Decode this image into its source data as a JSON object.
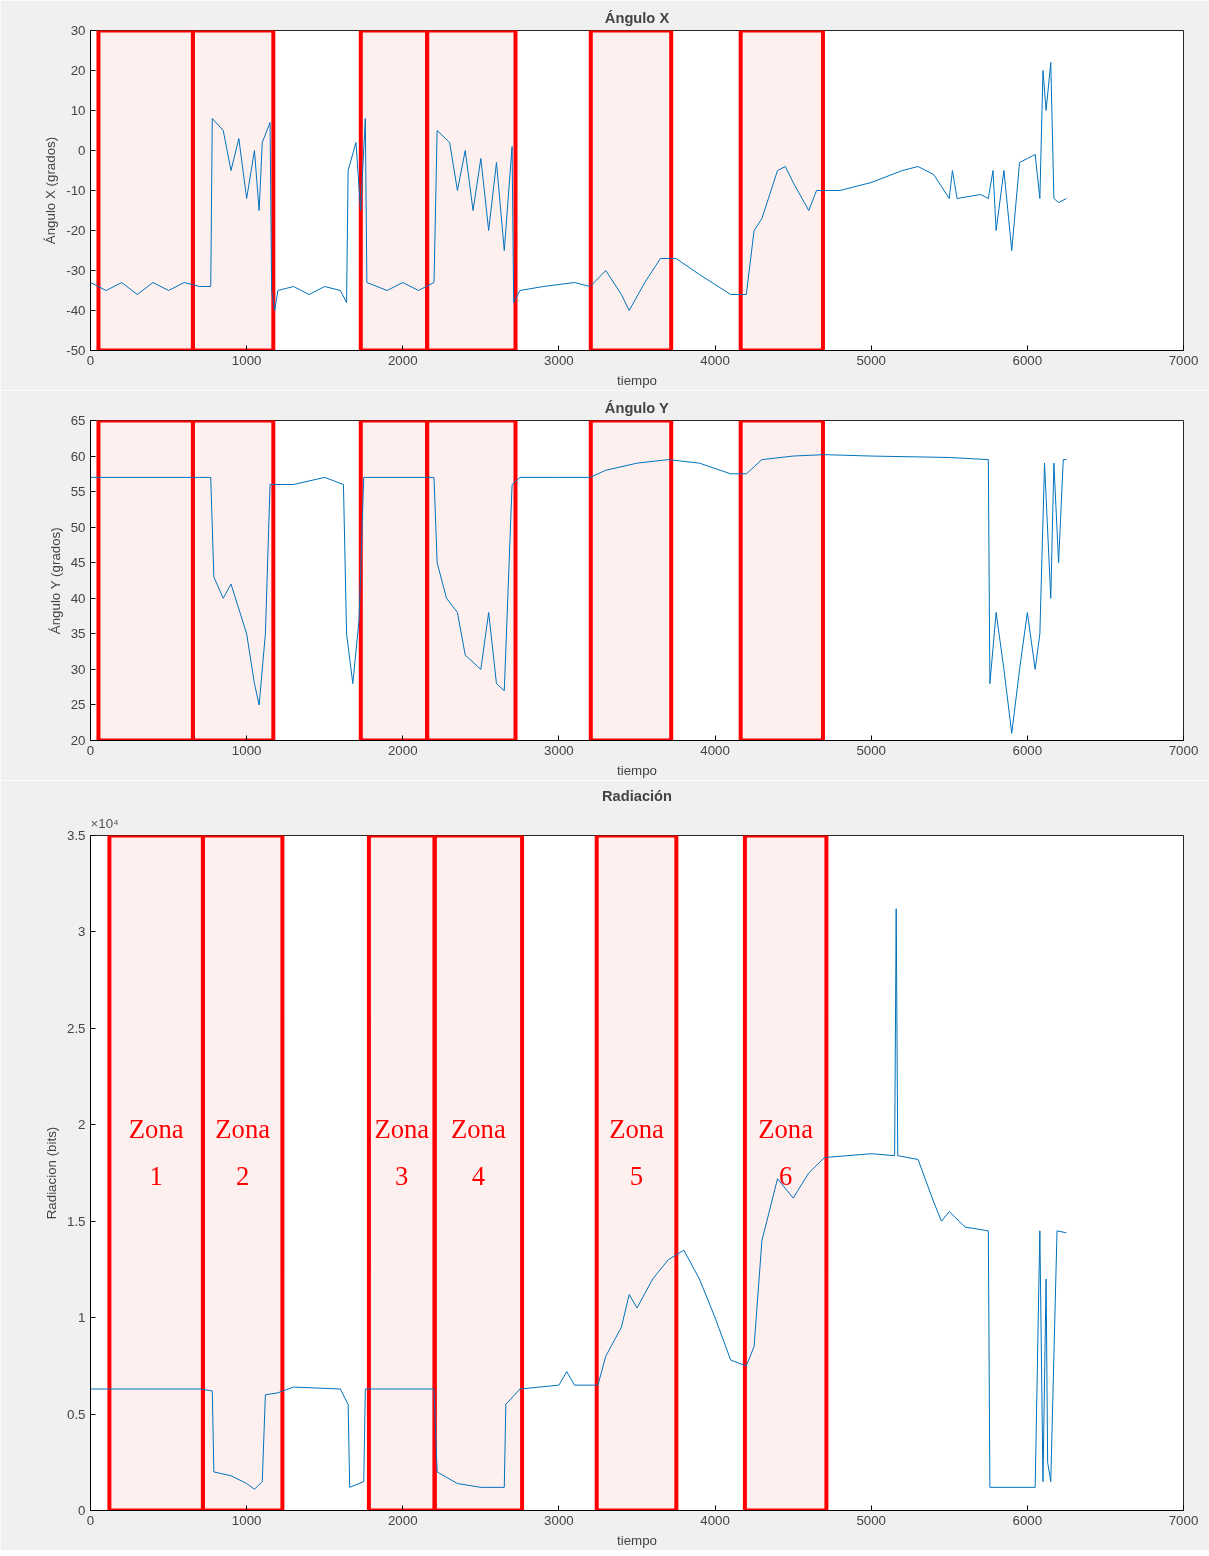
{
  "chart_data": [
    {
      "type": "line",
      "title": "Ángulo X",
      "xlabel": "tiempo",
      "ylabel": "Ángulo X (grados)",
      "xlim": [
        0,
        7000
      ],
      "xticks": [
        0,
        1000,
        2000,
        3000,
        4000,
        5000,
        6000,
        7000
      ],
      "ylim": [
        -50,
        30
      ],
      "yticks": [
        -50,
        -40,
        -30,
        -20,
        -10,
        0,
        10,
        20,
        30
      ],
      "grid": false,
      "x": [
        0,
        100,
        200,
        300,
        400,
        500,
        600,
        700,
        770,
        780,
        850,
        900,
        950,
        1000,
        1050,
        1080,
        1100,
        1150,
        1160,
        1180,
        1200,
        1300,
        1400,
        1500,
        1600,
        1640,
        1650,
        1700,
        1730,
        1760,
        1770,
        1900,
        2000,
        2100,
        2200,
        2220,
        2300,
        2350,
        2400,
        2450,
        2500,
        2550,
        2600,
        2650,
        2700,
        2710,
        2750,
        2900,
        3100,
        3200,
        3300,
        3400,
        3450,
        3550,
        3650,
        3750,
        3900,
        4100,
        4200,
        4250,
        4300,
        4400,
        4450,
        4500,
        4600,
        4650,
        4800,
        5000,
        5200,
        5300,
        5400,
        5450,
        5500,
        5520,
        5550,
        5700,
        5750,
        5780,
        5800,
        5850,
        5900,
        5950,
        6000,
        6050,
        6080,
        6100,
        6120,
        6150,
        6170,
        6200,
        6250
      ],
      "series": [
        {
          "color": "#0072bd",
          "values": [
            -33,
            -35,
            -33,
            -36,
            -33,
            -35,
            -33,
            -34,
            -34,
            8,
            5,
            -5,
            3,
            -12,
            0,
            -15,
            2,
            7,
            -35,
            -40,
            -35,
            -34,
            -36,
            -34,
            -35,
            -38,
            -5,
            2,
            -15,
            8,
            -33,
            -35,
            -33,
            -35,
            -33,
            5,
            2,
            -10,
            0,
            -15,
            -2,
            -20,
            -3,
            -25,
            1,
            -38,
            -35,
            -34,
            -33,
            -34,
            -30,
            -36,
            -40,
            -33,
            -27,
            -27,
            -31,
            -36,
            -36,
            -20,
            -17,
            -5,
            -4,
            -8,
            -15,
            -10,
            -10,
            -8,
            -5,
            -4,
            -6,
            -9,
            -12,
            -5,
            -12,
            -11,
            -12,
            -5,
            -20,
            -5,
            -25,
            -3,
            -2,
            -1,
            -12,
            20,
            10,
            22,
            -12,
            -13,
            -12
          ]
        }
      ],
      "bands": [
        {
          "axis": "x",
          "from": 51,
          "to": 656,
          "color": "#ff0000"
        },
        {
          "axis": "x",
          "from": 656,
          "to": 1171,
          "color": "#ff0000"
        },
        {
          "axis": "x",
          "from": 1731,
          "to": 2156,
          "color": "#ff0000"
        },
        {
          "axis": "x",
          "from": 2156,
          "to": 2722,
          "color": "#ff0000"
        },
        {
          "axis": "x",
          "from": 3204,
          "to": 3719,
          "color": "#ff0000"
        },
        {
          "axis": "x",
          "from": 4164,
          "to": 4691,
          "color": "#ff0000"
        }
      ]
    },
    {
      "type": "line",
      "title": "Ángulo Y",
      "xlabel": "tiempo",
      "ylabel": "Ángulo Y (grados)",
      "xlim": [
        0,
        7000
      ],
      "xticks": [
        0,
        1000,
        2000,
        3000,
        4000,
        5000,
        6000,
        7000
      ],
      "ylim": [
        20,
        65
      ],
      "yticks": [
        20,
        25,
        30,
        35,
        40,
        45,
        50,
        55,
        60,
        65
      ],
      "grid": false,
      "x": [
        0,
        700,
        770,
        790,
        850,
        900,
        1000,
        1050,
        1080,
        1120,
        1150,
        1300,
        1500,
        1620,
        1640,
        1680,
        1720,
        1750,
        2200,
        2220,
        2280,
        2350,
        2400,
        2500,
        2550,
        2600,
        2650,
        2700,
        2750,
        3000,
        3200,
        3300,
        3500,
        3700,
        3900,
        4100,
        4200,
        4300,
        4500,
        4700,
        5000,
        5500,
        5750,
        5760,
        5800,
        5850,
        5900,
        5950,
        6000,
        6050,
        6080,
        6110,
        6150,
        6170,
        6200,
        6230,
        6250
      ],
      "series": [
        {
          "color": "#0072bd",
          "values": [
            57,
            57,
            57,
            43,
            40,
            42,
            35,
            28,
            25,
            35,
            56,
            56,
            57,
            56,
            35,
            28,
            37,
            57,
            57,
            45,
            40,
            38,
            32,
            30,
            38,
            28,
            27,
            56,
            57,
            57,
            57,
            58,
            59,
            59.5,
            59,
            57.5,
            57.5,
            59.5,
            60,
            60.2,
            60,
            59.8,
            59.5,
            28,
            38,
            30,
            21,
            30,
            38,
            30,
            35,
            59,
            40,
            59,
            45,
            59.5,
            59.5
          ]
        }
      ],
      "bands": [
        {
          "axis": "x",
          "from": 51,
          "to": 656,
          "color": "#ff0000"
        },
        {
          "axis": "x",
          "from": 656,
          "to": 1171,
          "color": "#ff0000"
        },
        {
          "axis": "x",
          "from": 1731,
          "to": 2156,
          "color": "#ff0000"
        },
        {
          "axis": "x",
          "from": 2156,
          "to": 2722,
          "color": "#ff0000"
        },
        {
          "axis": "x",
          "from": 3204,
          "to": 3719,
          "color": "#ff0000"
        },
        {
          "axis": "x",
          "from": 4164,
          "to": 4691,
          "color": "#ff0000"
        }
      ]
    },
    {
      "type": "line",
      "title": "Radiación",
      "xlabel": "tiempo",
      "ylabel": "Radiacion (bits)",
      "annotations": [
        "×10⁴"
      ],
      "xlim": [
        0,
        7000
      ],
      "xticks": [
        0,
        1000,
        2000,
        3000,
        4000,
        5000,
        6000,
        7000
      ],
      "ylim": [
        0,
        3.5
      ],
      "yticks": [
        0,
        0.5,
        1,
        1.5,
        2,
        2.5,
        3,
        3.5
      ],
      "grid": false,
      "x": [
        0,
        700,
        780,
        790,
        900,
        1000,
        1050,
        1100,
        1120,
        1200,
        1300,
        1600,
        1650,
        1660,
        1750,
        1760,
        2200,
        2220,
        2350,
        2500,
        2650,
        2660,
        2750,
        3000,
        3050,
        3100,
        3250,
        3300,
        3400,
        3450,
        3500,
        3600,
        3700,
        3800,
        3900,
        4000,
        4100,
        4200,
        4250,
        4300,
        4400,
        4500,
        4600,
        4700,
        5000,
        5150,
        5160,
        5170,
        5300,
        5400,
        5450,
        5500,
        5600,
        5750,
        5760,
        6050,
        6080,
        6100,
        6120,
        6130,
        6150,
        6190,
        6250
      ],
      "series": [
        {
          "color": "#0072bd",
          "values": [
            0.63,
            0.63,
            0.62,
            0.2,
            0.18,
            0.14,
            0.11,
            0.15,
            0.6,
            0.61,
            0.64,
            0.63,
            0.55,
            0.12,
            0.15,
            0.63,
            0.63,
            0.2,
            0.14,
            0.12,
            0.12,
            0.55,
            0.63,
            0.65,
            0.72,
            0.65,
            0.65,
            0.8,
            0.95,
            1.12,
            1.05,
            1.2,
            1.3,
            1.35,
            1.2,
            1.0,
            0.78,
            0.75,
            0.85,
            1.4,
            1.72,
            1.62,
            1.75,
            1.83,
            1.85,
            1.84,
            3.12,
            1.84,
            1.82,
            1.6,
            1.5,
            1.55,
            1.47,
            1.45,
            0.12,
            0.12,
            1.45,
            0.15,
            1.2,
            0.25,
            0.15,
            1.45,
            1.44
          ]
        }
      ],
      "bands": [
        {
          "axis": "x",
          "from": 121,
          "to": 720,
          "color": "#ff0000",
          "label": "Zona 1"
        },
        {
          "axis": "x",
          "from": 720,
          "to": 1229,
          "color": "#ff0000",
          "label": "Zona 2"
        },
        {
          "axis": "x",
          "from": 1783,
          "to": 2204,
          "color": "#ff0000",
          "label": "Zona 3"
        },
        {
          "axis": "x",
          "from": 2204,
          "to": 2764,
          "color": "#ff0000",
          "label": "Zona 4"
        },
        {
          "axis": "x",
          "from": 3242,
          "to": 3752,
          "color": "#ff0000",
          "label": "Zona 5"
        },
        {
          "axis": "x",
          "from": 4191,
          "to": 4713,
          "color": "#ff0000",
          "label": "Zona 6"
        }
      ]
    }
  ]
}
